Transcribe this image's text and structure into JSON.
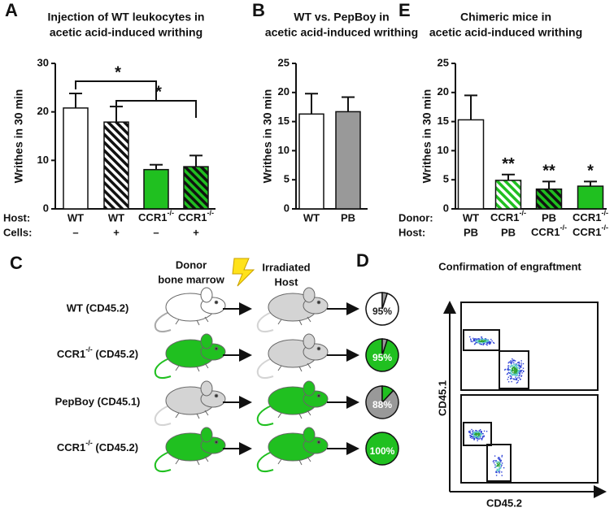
{
  "chart_data": [
    {
      "type": "bar",
      "panel": "A",
      "title": [
        "Injection of WT leukocytes in",
        "acetic acid-induced writhing"
      ],
      "y_label": "Writhes in 30 min",
      "ylim": [
        0,
        30
      ],
      "yticks": [
        0,
        10,
        20,
        30
      ],
      "values": [
        20.8,
        17.9,
        8.1,
        8.7
      ],
      "errors": [
        3.0,
        3.2,
        1.0,
        2.3
      ],
      "colors": [
        "#ffffff",
        "#ffffff",
        "#20c020",
        "#20c020"
      ],
      "hatch": [
        null,
        "#111111",
        null,
        "#111111"
      ],
      "row_labels": [
        "Host:",
        "Cells:"
      ],
      "rows": [
        [
          "WT",
          "WT",
          {
            "text": "CCR1",
            "sup": "-/-"
          },
          {
            "text": "CCR1",
            "sup": "-/-"
          }
        ],
        [
          "–",
          "+",
          "–",
          "+"
        ]
      ],
      "annotations": [
        "*",
        "*"
      ]
    },
    {
      "type": "bar",
      "panel": "B",
      "title": [
        "WT vs. PepBoy in",
        "acetic acid-induced writhing"
      ],
      "y_label": "Writhes in 30 min",
      "ylim": [
        0,
        25
      ],
      "yticks": [
        0,
        5,
        10,
        15,
        20,
        25
      ],
      "values": [
        16.3,
        16.7
      ],
      "errors": [
        3.5,
        2.5
      ],
      "colors": [
        "#ffffff",
        "#999999"
      ],
      "hatch": [
        null,
        null
      ],
      "rows": [
        [
          "WT",
          "PB"
        ]
      ]
    },
    {
      "type": "bar",
      "panel": "E",
      "title": [
        "Chimeric mice in",
        "acetic acid-induced writhing"
      ],
      "y_label": "Writhes in 30 min",
      "ylim": [
        0,
        25
      ],
      "yticks": [
        0,
        5,
        10,
        15,
        20,
        25
      ],
      "values": [
        15.3,
        4.9,
        3.4,
        3.9
      ],
      "errors": [
        4.2,
        1.0,
        1.3,
        0.8
      ],
      "colors": [
        "#ffffff",
        "#ffffff",
        "#20c020",
        "#20c020"
      ],
      "hatch": [
        null,
        "#20c020",
        "#111111",
        null
      ],
      "bar_labels": [
        null,
        "**",
        "**",
        "*"
      ],
      "row_labels": [
        "Donor:",
        "Host:"
      ],
      "rows": [
        [
          "WT",
          {
            "text": "CCR1",
            "sup": "-/-"
          },
          "PB",
          {
            "text": "CCR1",
            "sup": "-/-"
          }
        ],
        [
          "PB",
          "PB",
          {
            "text": "CCR1",
            "sup": "-/-"
          },
          {
            "text": "CCR1",
            "sup": "-/-"
          }
        ]
      ]
    }
  ],
  "panel_c": {
    "panel": "C",
    "donor_header": [
      "Donor",
      "bone marrow"
    ],
    "host_header": [
      "Irradiated",
      "Host"
    ],
    "rows": [
      "WT (CD45.2)",
      {
        "text": "CCR1",
        "sup": "-/-",
        "rest": " (CD45.2)"
      },
      "PepBoy (CD45.1)",
      {
        "text": "CCR1",
        "sup": "-/-",
        "rest": " (CD45.2)"
      }
    ],
    "donor_colors": [
      "#ffffff",
      "#20c020",
      "#d4d4d4",
      "#20c020"
    ],
    "host_colors": [
      "#d4d4d4",
      "#d4d4d4",
      "#20c020",
      "#20c020"
    ]
  },
  "panel_d": {
    "panel": "D",
    "title": "Confirmation of engraftment",
    "pie": {
      "type": "pie",
      "values": [
        95,
        95,
        88,
        100
      ],
      "value_labels": [
        "95%",
        "95%",
        "88%",
        "100%"
      ],
      "colors": [
        "#ffffff",
        "#20c020",
        "#999999",
        "#20c020"
      ],
      "rest_colors": [
        "#999999",
        "#999999",
        "#20c020",
        null
      ],
      "label_colors": [
        "#222222",
        "#ffffff",
        "#ffffff",
        "#ffffff"
      ]
    },
    "y_label": "CD45.1",
    "x_label": "CD45.2"
  }
}
